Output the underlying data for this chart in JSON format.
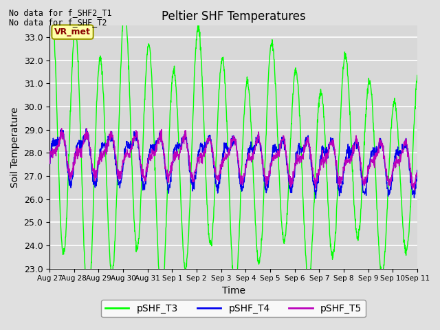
{
  "title": "Peltier SHF Temperatures",
  "xlabel": "Time",
  "ylabel": "Soil Temperature",
  "ylim": [
    23.0,
    33.5
  ],
  "yticks": [
    23.0,
    24.0,
    25.0,
    26.0,
    27.0,
    28.0,
    29.0,
    30.0,
    31.0,
    32.0,
    33.0
  ],
  "xtick_labels": [
    "Aug 27",
    "Aug 28",
    "Aug 29",
    "Aug 30",
    "Aug 31",
    "Sep 1",
    "Sep 2",
    "Sep 3",
    "Sep 4",
    "Sep 5",
    "Sep 6",
    "Sep 7",
    "Sep 8",
    "Sep 9",
    "Sep 10",
    "Sep 11"
  ],
  "annotations": [
    "No data for f_SHF2_T1",
    "No data for f_SHF_T2"
  ],
  "legend_labels": [
    "pSHF_T3",
    "pSHF_T4",
    "pSHF_T5"
  ],
  "line_colors": [
    "#00FF00",
    "#0000EE",
    "#BB00BB"
  ],
  "vr_met_box_facecolor": "#FFFFAA",
  "vr_met_box_edgecolor": "#999900",
  "vr_met_text_color": "#880000",
  "background_color": "#E0E0E0",
  "plot_bg_color": "#D8D8D8",
  "grid_color": "#FFFFFF",
  "n_days": 15,
  "ppd": 96,
  "T3_base": 28.0,
  "T3_amp": 2.8,
  "T3_amp_decay": 0.03,
  "T3_phase": 1.2,
  "T3_trend": -0.05,
  "T4_base": 28.0,
  "T4_amp": 0.9,
  "T4_phase": -0.8,
  "T4_trend": -0.03,
  "T5_base": 28.0,
  "T5_amp": 0.7,
  "T5_phase": -1.1,
  "T5_trend": -0.03
}
